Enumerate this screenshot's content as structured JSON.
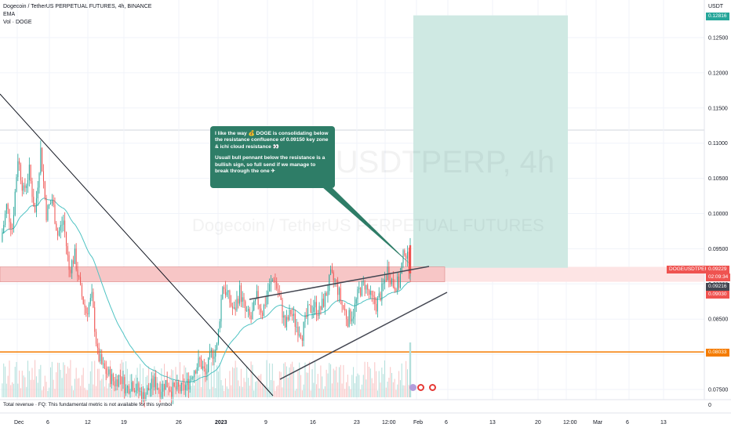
{
  "header": {
    "symbol_line": "Dogecoin / TetherUS PERPETUAL FUTURES, 4h, BINANCE",
    "ema_label": "EMA",
    "vol_label": "Vol · DOGE"
  },
  "watermark": {
    "symbol": "DOGEUSDTPERP, 4h",
    "description": "Dogecoin / TetherUS PERPETUAL FUTURES"
  },
  "annotation": {
    "paragraph1": "I like the way 💰 DOGE is consolidating below the resistance confluence of 0.09150 key zone & ichi cloud resistance 👀",
    "paragraph2": "Usuall bull pennant below the resistance is a bullish sign, so full send if we manage to break through the one ✈"
  },
  "price_scale": {
    "currency": "USDT",
    "labels": [
      "0.12500",
      "0.12000",
      "0.11500",
      "0.11000",
      "0.10500",
      "0.10000",
      "0.09500",
      "0.09000",
      "0.08500",
      "0.08000",
      "0.07500"
    ],
    "values": [
      0.125,
      0.12,
      0.115,
      0.11,
      0.105,
      0.1,
      0.095,
      0.09,
      0.085,
      0.08,
      0.075
    ],
    "target_tag": "0.12816",
    "symbol_tag": "DOGEUSDTPERP",
    "last_price_tag": "0.09229",
    "countdown_tag": "02:09:34",
    "high_tag": "0.09216",
    "low_tag": "0.09030",
    "orange_level_tag": "0.08033"
  },
  "time_axis": {
    "labels": [
      "Dec",
      "6",
      "12",
      "19",
      "26",
      "2023",
      "9",
      "16",
      "23",
      "12:00",
      "Feb",
      "6",
      "13",
      "20",
      "12:00",
      "Mar",
      "6",
      "13"
    ]
  },
  "footer": {
    "note": "Total revenue · FQ: This fundamental metric is not available for this symbol",
    "zero": "0"
  },
  "colors": {
    "up": "#26a69a",
    "down": "#ef5350",
    "ema": "#4fc3c3",
    "resistance_zone": "#f7c6c6",
    "target_zone": "#cfe9e3",
    "orange_level": "#f57c00",
    "annotation_bg": "#2e7d67"
  },
  "chart_data": {
    "type": "candlestick",
    "symbol": "DOGEUSDTPERP",
    "timeframe": "4h",
    "exchange": "BINANCE",
    "ylim": [
      0.074,
      0.129
    ],
    "y_ticks": [
      0.075,
      0.08,
      0.085,
      0.09,
      0.095,
      0.1,
      0.105,
      0.11,
      0.115,
      0.12,
      0.125
    ],
    "x_ticks": [
      "Dec",
      "6",
      "12",
      "19",
      "26",
      "2023",
      "9",
      "16",
      "23",
      "12:00",
      "Feb",
      "6",
      "13",
      "20",
      "12:00",
      "Mar",
      "6",
      "13"
    ],
    "grid": true,
    "levels": {
      "resistance_zone": [
        0.0903,
        0.0922
      ],
      "orange_level": 0.08033,
      "last_price": 0.09229,
      "target": 0.12816
    },
    "price_path": [
      0.096,
      0.101,
      0.098,
      0.108,
      0.103,
      0.106,
      0.1,
      0.109,
      0.1,
      0.102,
      0.097,
      0.099,
      0.092,
      0.094,
      0.089,
      0.086,
      0.088,
      0.08,
      0.078,
      0.077,
      0.076,
      0.077,
      0.075,
      0.076,
      0.075,
      0.074,
      0.075,
      0.076,
      0.075,
      0.076,
      0.075,
      0.075,
      0.075,
      0.076,
      0.078,
      0.079,
      0.077,
      0.08,
      0.081,
      0.09,
      0.088,
      0.086,
      0.089,
      0.086,
      0.085,
      0.088,
      0.086,
      0.089,
      0.091,
      0.088,
      0.084,
      0.086,
      0.084,
      0.083,
      0.086,
      0.087,
      0.086,
      0.088,
      0.091,
      0.09,
      0.087,
      0.085,
      0.086,
      0.089,
      0.09,
      0.088,
      0.087,
      0.089,
      0.092,
      0.09,
      0.09,
      0.095,
      0.092
    ]
  }
}
